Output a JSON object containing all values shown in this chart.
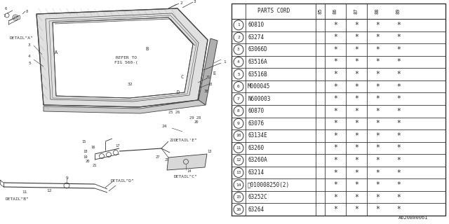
{
  "background_color": "#ffffff",
  "image_label": "A620B00061",
  "table": {
    "title": "PARTS CORD",
    "col_headers": [
      "85",
      "86",
      "87",
      "88",
      "89"
    ],
    "rows": [
      {
        "num": 1,
        "part": "60810",
        "stars": [
          0,
          1,
          1,
          1,
          1
        ]
      },
      {
        "num": 2,
        "part": "63274",
        "stars": [
          0,
          1,
          1,
          1,
          1
        ]
      },
      {
        "num": 3,
        "part": "63066D",
        "stars": [
          0,
          1,
          1,
          1,
          1
        ]
      },
      {
        "num": 4,
        "part": "63516A",
        "stars": [
          0,
          1,
          1,
          1,
          1
        ]
      },
      {
        "num": 5,
        "part": "63516B",
        "stars": [
          0,
          1,
          1,
          1,
          1
        ]
      },
      {
        "num": 6,
        "part": "M000045",
        "stars": [
          0,
          1,
          1,
          1,
          1
        ]
      },
      {
        "num": 7,
        "part": "N600003",
        "stars": [
          0,
          1,
          1,
          1,
          1
        ]
      },
      {
        "num": 8,
        "part": "60870",
        "stars": [
          0,
          1,
          1,
          1,
          1
        ]
      },
      {
        "num": 9,
        "part": "63076",
        "stars": [
          0,
          1,
          1,
          1,
          1
        ]
      },
      {
        "num": 10,
        "part": "63134E",
        "stars": [
          0,
          1,
          1,
          1,
          1
        ]
      },
      {
        "num": 11,
        "part": "63260",
        "stars": [
          0,
          1,
          1,
          1,
          1
        ]
      },
      {
        "num": 12,
        "part": "63260A",
        "stars": [
          0,
          1,
          1,
          1,
          1
        ]
      },
      {
        "num": 13,
        "part": "63214",
        "stars": [
          0,
          1,
          1,
          1,
          1
        ]
      },
      {
        "num": 14,
        "part": "Ⓑ010008250(2)",
        "stars": [
          0,
          1,
          1,
          1,
          1
        ]
      },
      {
        "num": 15,
        "part": "63252C",
        "stars": [
          0,
          1,
          1,
          1,
          1
        ]
      },
      {
        "num": 16,
        "part": "63264",
        "stars": [
          0,
          1,
          1,
          1,
          1
        ]
      }
    ]
  }
}
